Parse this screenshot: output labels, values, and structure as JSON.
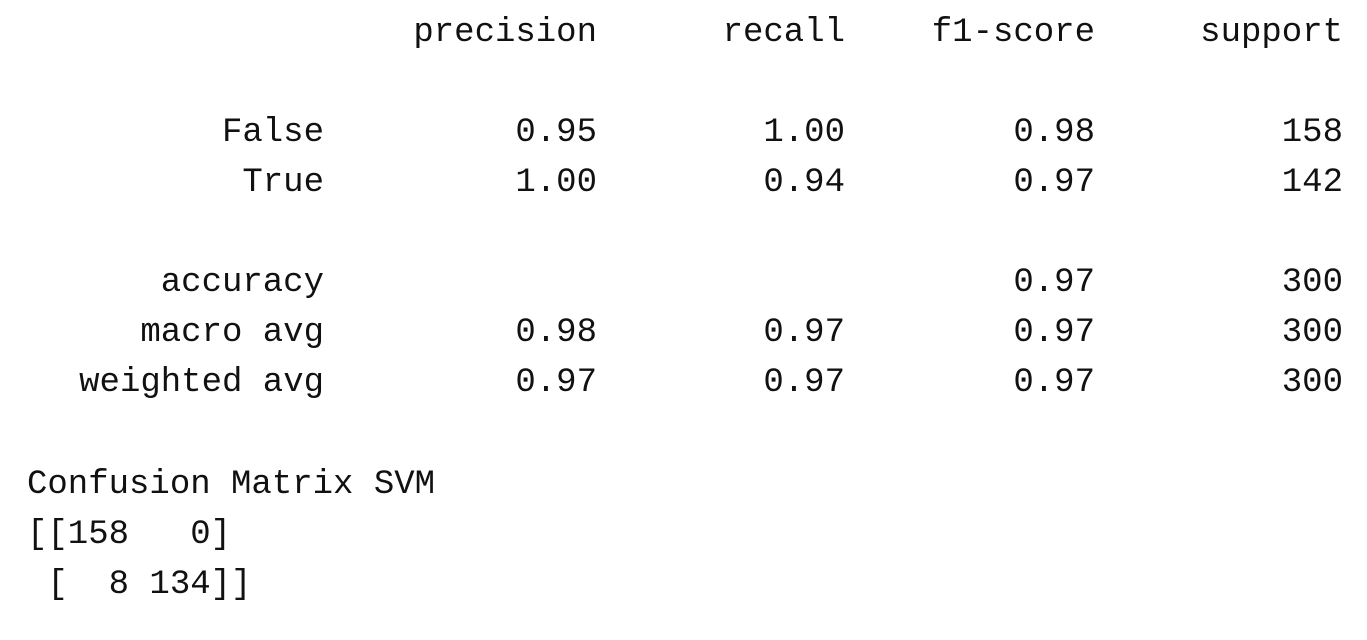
{
  "report": {
    "headers": [
      "precision",
      "recall",
      "f1-score",
      "support"
    ],
    "rows": [
      {
        "label": "False",
        "precision": "0.95",
        "recall": "1.00",
        "f1": "0.98",
        "support": "158"
      },
      {
        "label": "True",
        "precision": "1.00",
        "recall": "0.94",
        "f1": "0.97",
        "support": "142"
      },
      {
        "label": "accuracy",
        "precision": "",
        "recall": "",
        "f1": "0.97",
        "support": "300"
      },
      {
        "label": "macro avg",
        "precision": "0.98",
        "recall": "0.97",
        "f1": "0.97",
        "support": "300"
      },
      {
        "label": "weighted avg",
        "precision": "0.97",
        "recall": "0.97",
        "f1": "0.97",
        "support": "300"
      }
    ]
  },
  "confusion": {
    "title": "Confusion Matrix SVM",
    "line1": "[[158   0]",
    "line2": " [  8 134]]"
  }
}
